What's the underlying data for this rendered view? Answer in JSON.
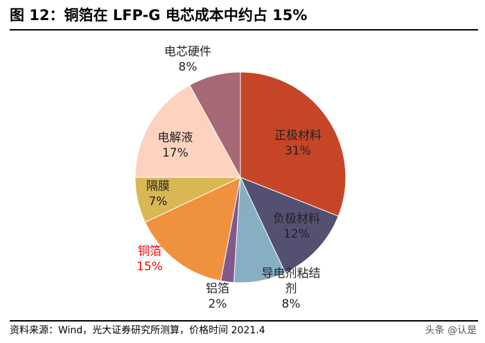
{
  "title": "图 12：铜箔在 LFP-G 电芯成本中约占 15%",
  "source": "资料来源：Wind，光大证券研究所测算，价格时间 2021.4",
  "watermark": "头条 @认是",
  "chart_data": {
    "type": "pie",
    "start": "top",
    "direction": "clockwise",
    "slices": [
      {
        "label": "正极材料",
        "pct_label": "31%",
        "value": 31,
        "color": "#C64527",
        "label_color": "#222222"
      },
      {
        "label": "负极材料",
        "pct_label": "12%",
        "value": 12,
        "color": "#545071",
        "label_color": "#222222"
      },
      {
        "label": "导电剂粘结剂",
        "pct_label": "8%",
        "value": 8,
        "color": "#86AFC3",
        "label_color": "#222222"
      },
      {
        "label": "铝箔",
        "pct_label": "2%",
        "value": 2,
        "color": "#825A8A",
        "label_color": "#222222"
      },
      {
        "label": "铜箔",
        "pct_label": "15%",
        "value": 15,
        "color": "#F0913E",
        "label_color": "#FF0000"
      },
      {
        "label": "隔膜",
        "pct_label": "7%",
        "value": 7,
        "color": "#D9B853",
        "label_color": "#222222"
      },
      {
        "label": "电解液",
        "pct_label": "17%",
        "value": 17,
        "color": "#FDD3C0",
        "label_color": "#222222"
      },
      {
        "label": "电芯硬件",
        "pct_label": "8%",
        "value": 8,
        "color": "#A66975",
        "label_color": "#222222"
      }
    ]
  }
}
